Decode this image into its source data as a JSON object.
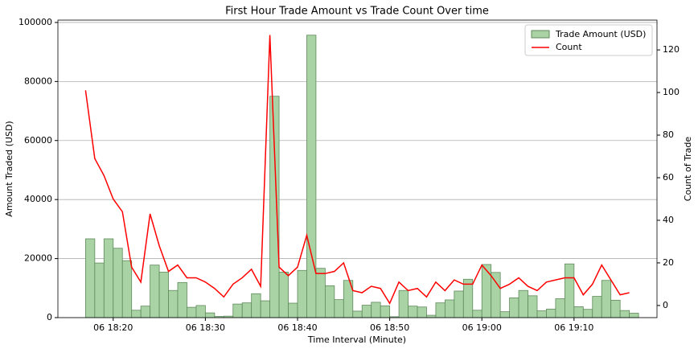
{
  "chart_data": {
    "type": "bar-line",
    "title": "First Hour Trade Amount vs Trade Count Over time",
    "x_label": "Time Interval (Minute)",
    "y_label": "Amount Traded (USD)",
    "y2_label": "Count of Trade",
    "x": [
      "06 18:17",
      "06 18:18",
      "06 18:19",
      "06 18:20",
      "06 18:21",
      "06 18:22",
      "06 18:23",
      "06 18:24",
      "06 18:25",
      "06 18:26",
      "06 18:27",
      "06 18:28",
      "06 18:29",
      "06 18:30",
      "06 18:31",
      "06 18:32",
      "06 18:33",
      "06 18:34",
      "06 18:35",
      "06 18:36",
      "06 18:37",
      "06 18:38",
      "06 18:39",
      "06 18:40",
      "06 18:41",
      "06 18:42",
      "06 18:43",
      "06 18:44",
      "06 18:45",
      "06 18:46",
      "06 18:47",
      "06 18:48",
      "06 18:49",
      "06 18:50",
      "06 18:51",
      "06 18:52",
      "06 18:53",
      "06 18:54",
      "06 18:55",
      "06 18:56",
      "06 18:57",
      "06 18:58",
      "06 18:59",
      "06 19:00",
      "06 19:01",
      "06 19:02",
      "06 19:03",
      "06 19:04",
      "06 19:05",
      "06 19:06",
      "06 19:07",
      "06 19:08",
      "06 19:09",
      "06 19:10",
      "06 19:11",
      "06 19:12",
      "06 19:13",
      "06 19:14",
      "06 19:15",
      "06 19:16"
    ],
    "series": [
      {
        "name": "Trade Amount (USD)",
        "color": "#a9d3a5",
        "edgecolor": "#5f8a5b",
        "values": [
          26700,
          18500,
          26700,
          23500,
          19300,
          2500,
          3900,
          17800,
          15400,
          9200,
          11900,
          3500,
          4100,
          1600,
          400,
          500,
          4600,
          5000,
          8100,
          5700,
          75000,
          15400,
          4900,
          16000,
          95700,
          16700,
          10800,
          6100,
          12600,
          2200,
          4200,
          5200,
          4000,
          300,
          9200,
          3900,
          3600,
          800,
          5000,
          6000,
          9000,
          13000,
          2500,
          18000,
          15300,
          2000,
          6700,
          9200,
          7400,
          2300,
          2900,
          6400,
          18200,
          3700,
          2800,
          7200,
          12600,
          5900,
          2400,
          1500
        ]
      },
      {
        "name": "Count",
        "color": "#ff0000",
        "axis": "y2",
        "values": [
          101,
          69,
          61,
          50,
          44,
          18,
          11,
          43,
          28,
          16,
          19,
          13,
          13,
          11,
          8,
          4,
          10,
          13,
          17,
          9,
          127,
          18,
          14,
          18,
          33,
          15,
          15,
          16,
          20,
          7,
          6,
          9,
          8,
          1,
          11,
          7,
          8,
          4,
          11,
          7,
          12,
          10,
          10,
          19,
          14,
          8,
          10,
          13,
          9,
          7,
          11,
          12,
          13,
          13,
          5,
          10,
          19,
          12,
          5,
          6
        ]
      }
    ],
    "xlim": [
      "06 18:14",
      "06 19:19"
    ],
    "xticks": [
      "06 18:20",
      "06 18:30",
      "06 18:40",
      "06 18:50",
      "06 19:00",
      "06 19:10"
    ],
    "ylim": [
      0,
      100800
    ],
    "yticks": [
      0,
      20000,
      40000,
      60000,
      80000,
      100000
    ],
    "y2lim": [
      -5.7,
      134
    ],
    "y2ticks": [
      0,
      20,
      40,
      60,
      80,
      100,
      120
    ],
    "grid": true,
    "legend": "upper right"
  }
}
